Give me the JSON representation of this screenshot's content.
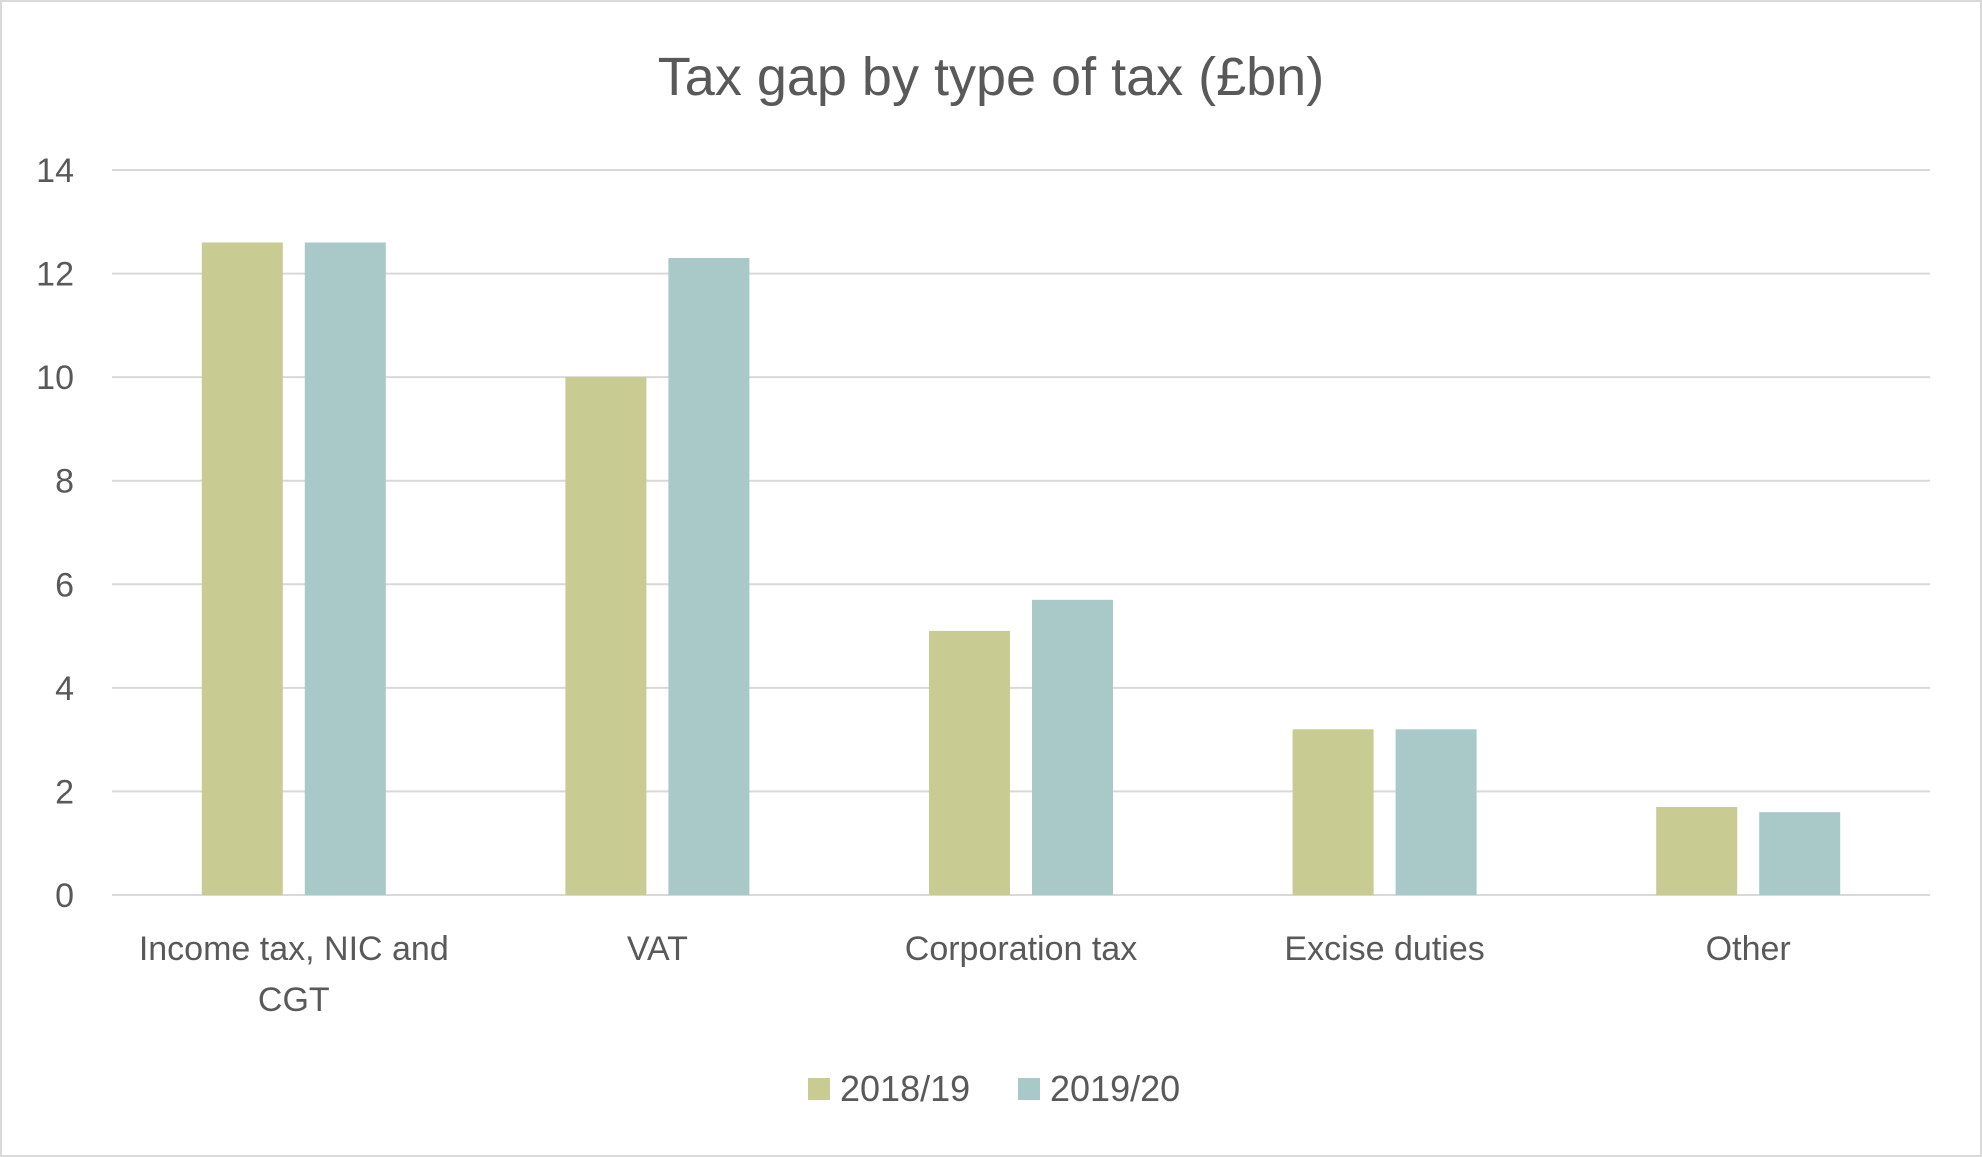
{
  "chart_data": {
    "type": "bar",
    "title": "Tax gap by type of tax (£bn)",
    "xlabel": "",
    "ylabel": "",
    "categories": [
      [
        "Income tax, NIC and",
        "CGT"
      ],
      [
        "VAT"
      ],
      [
        "Corporation tax"
      ],
      [
        "Excise duties"
      ],
      [
        "Other"
      ]
    ],
    "series": [
      {
        "name": "2018/19",
        "color": "#c8cb92",
        "values": [
          12.6,
          10.0,
          5.1,
          3.2,
          1.7
        ]
      },
      {
        "name": "2019/20",
        "color": "#a8c9c8",
        "values": [
          12.6,
          12.3,
          5.7,
          3.2,
          1.6
        ]
      }
    ],
    "ylim": [
      0,
      14
    ],
    "yticks": [
      0,
      2,
      4,
      6,
      8,
      10,
      12,
      14
    ],
    "grid": true,
    "legend_position": "bottom",
    "colors": {
      "gridline": "#d9d9d9",
      "text": "#595959",
      "border": "#d9d9d9"
    }
  }
}
